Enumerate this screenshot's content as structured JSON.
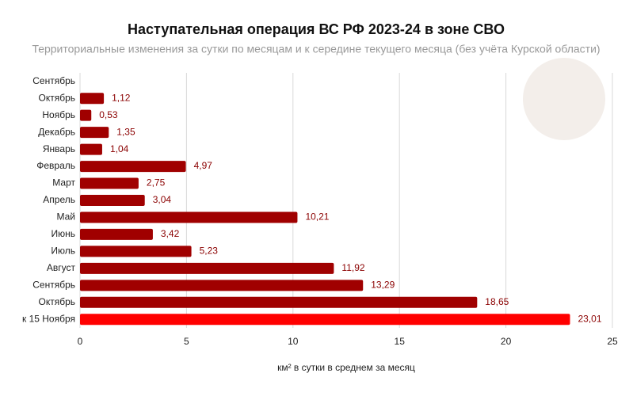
{
  "chart_data": {
    "type": "hbar",
    "title": "Наступательная операция ВС РФ 2023-24 в зоне СВО",
    "subtitle": "Территориальные изменения за сутки по месяцам и к середине текущего месяца (без учёта Курской области)",
    "x_label": "км² в сутки в среднем за месяц",
    "categories": [
      "Сентябрь",
      "Октябрь",
      "Ноябрь",
      "Декабрь",
      "Январь",
      "Февраль",
      "Март",
      "Апрель",
      "Май",
      "Июнь",
      "Июль",
      "Август",
      "Сентябрь",
      "Октябрь",
      "к 15 Ноября"
    ],
    "values": [
      null,
      1.12,
      0.53,
      1.35,
      1.04,
      4.97,
      2.75,
      3.04,
      10.21,
      3.42,
      5.23,
      11.92,
      13.29,
      18.65,
      23.01
    ],
    "value_labels": [
      null,
      "1,12",
      "0,53",
      "1,35",
      "1,04",
      "4,97",
      "2,75",
      "3,04",
      "10,21",
      "3,42",
      "5,23",
      "11,92",
      "13,29",
      "18,65",
      "23,01"
    ],
    "colors": [
      "#a00000",
      "#a00000",
      "#a00000",
      "#a00000",
      "#a00000",
      "#a00000",
      "#a00000",
      "#a00000",
      "#a00000",
      "#a00000",
      "#a00000",
      "#a00000",
      "#a00000",
      "#a00000",
      "#ff0000"
    ],
    "xlim": [
      0,
      25
    ],
    "xticks": [
      0,
      5,
      10,
      15,
      20,
      25
    ],
    "grid": true
  }
}
